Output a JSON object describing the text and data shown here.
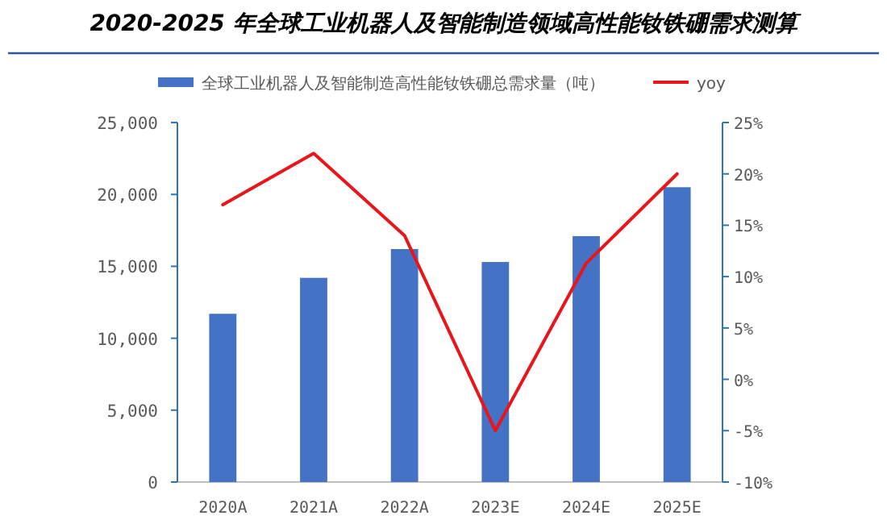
{
  "chart_data": {
    "type": "bar",
    "title": "2020-2025 年全球工业机器人及智能制造领域高性能钕铁硼需求测算",
    "categories": [
      "2020A",
      "2021A",
      "2022A",
      "2023E",
      "2024E",
      "2025E"
    ],
    "series": [
      {
        "name": "全球工业机器人及智能制造高性能钕铁硼总需求量（吨）",
        "color": "#4472c4",
        "values": [
          11700,
          14200,
          16200,
          15300,
          17100,
          20500
        ]
      },
      {
        "name": "yoy",
        "type": "line",
        "axis": "y2",
        "color": "#e8151b",
        "marker": "none",
        "values": [
          17,
          22,
          14,
          -5,
          11.3,
          20
        ]
      }
    ],
    "ylim": [
      0,
      25000
    ],
    "yticks": [
      0,
      {
        "value": 5000,
        "label": "5,000"
      },
      {
        "value": 10000,
        "label": "10,000"
      },
      {
        "value": 15000,
        "label": "15,000"
      },
      {
        "value": 20000,
        "label": "20,000"
      },
      {
        "value": 25000,
        "label": "25,000"
      }
    ],
    "y2lim": [
      -10,
      25
    ],
    "y2ticks": [
      {
        "value": -10,
        "label": "-10%"
      },
      {
        "value": -5,
        "label": "-5%"
      },
      {
        "value": 0,
        "label": "0%"
      },
      {
        "value": 5,
        "label": "5%"
      },
      {
        "value": 10,
        "label": "10%"
      },
      {
        "value": 15,
        "label": "15%"
      },
      {
        "value": 20,
        "label": "20%"
      },
      {
        "value": 25,
        "label": "25%"
      }
    ],
    "legend": "top"
  }
}
